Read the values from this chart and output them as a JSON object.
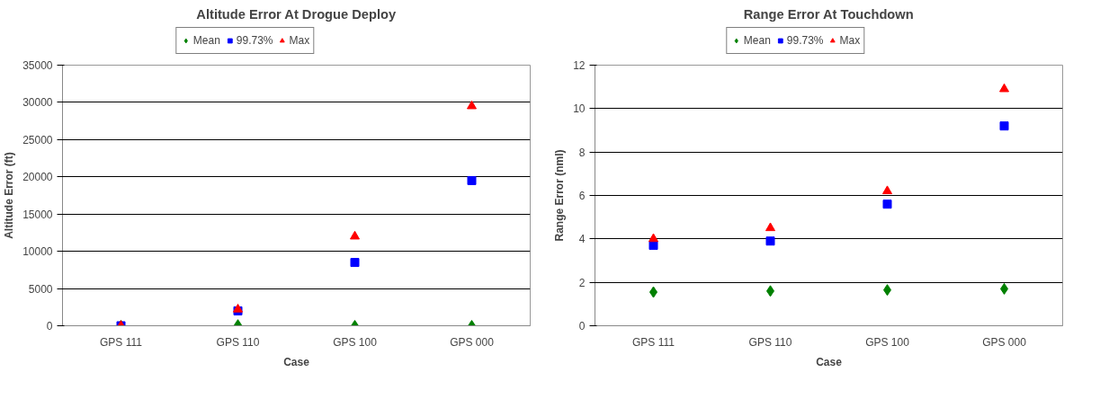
{
  "chart_data": [
    {
      "type": "scatter",
      "title": "Altitude Error At Drogue Deploy",
      "xlabel": "Case",
      "ylabel": "Altitude Error (ft)",
      "categories": [
        "GPS 111",
        "GPS 110",
        "GPS 100",
        "GPS 000"
      ],
      "ylim": [
        0,
        35000
      ],
      "yticks": [
        0,
        5000,
        10000,
        15000,
        20000,
        25000,
        30000,
        35000
      ],
      "grid": "y",
      "legend": "top",
      "series": [
        {
          "name": "Mean",
          "color": "#008000",
          "marker": "diamond",
          "values": [
            0,
            100,
            0,
            0
          ]
        },
        {
          "name": "99.73%",
          "color": "#0000ff",
          "marker": "square",
          "values": [
            0,
            2000,
            8500,
            19500
          ]
        },
        {
          "name": "Max",
          "color": "#ff0000",
          "marker": "triangle",
          "values": [
            0,
            2200,
            12000,
            29500
          ]
        }
      ]
    },
    {
      "type": "scatter",
      "title": "Range Error At Touchdown",
      "xlabel": "Case",
      "ylabel": "Range Error (nml)",
      "categories": [
        "GPS 111",
        "GPS 110",
        "GPS 100",
        "GPS 000"
      ],
      "ylim": [
        0,
        12
      ],
      "yticks": [
        0,
        2,
        4,
        6,
        8,
        10,
        12
      ],
      "grid": "y",
      "legend": "top",
      "series": [
        {
          "name": "Mean",
          "color": "#008000",
          "marker": "diamond",
          "values": [
            1.55,
            1.6,
            1.65,
            1.7
          ]
        },
        {
          "name": "99.73%",
          "color": "#0000ff",
          "marker": "square",
          "values": [
            3.7,
            3.9,
            5.6,
            9.2
          ]
        },
        {
          "name": "Max",
          "color": "#ff0000",
          "marker": "triangle",
          "values": [
            4.0,
            4.5,
            6.2,
            10.9
          ]
        }
      ]
    }
  ]
}
